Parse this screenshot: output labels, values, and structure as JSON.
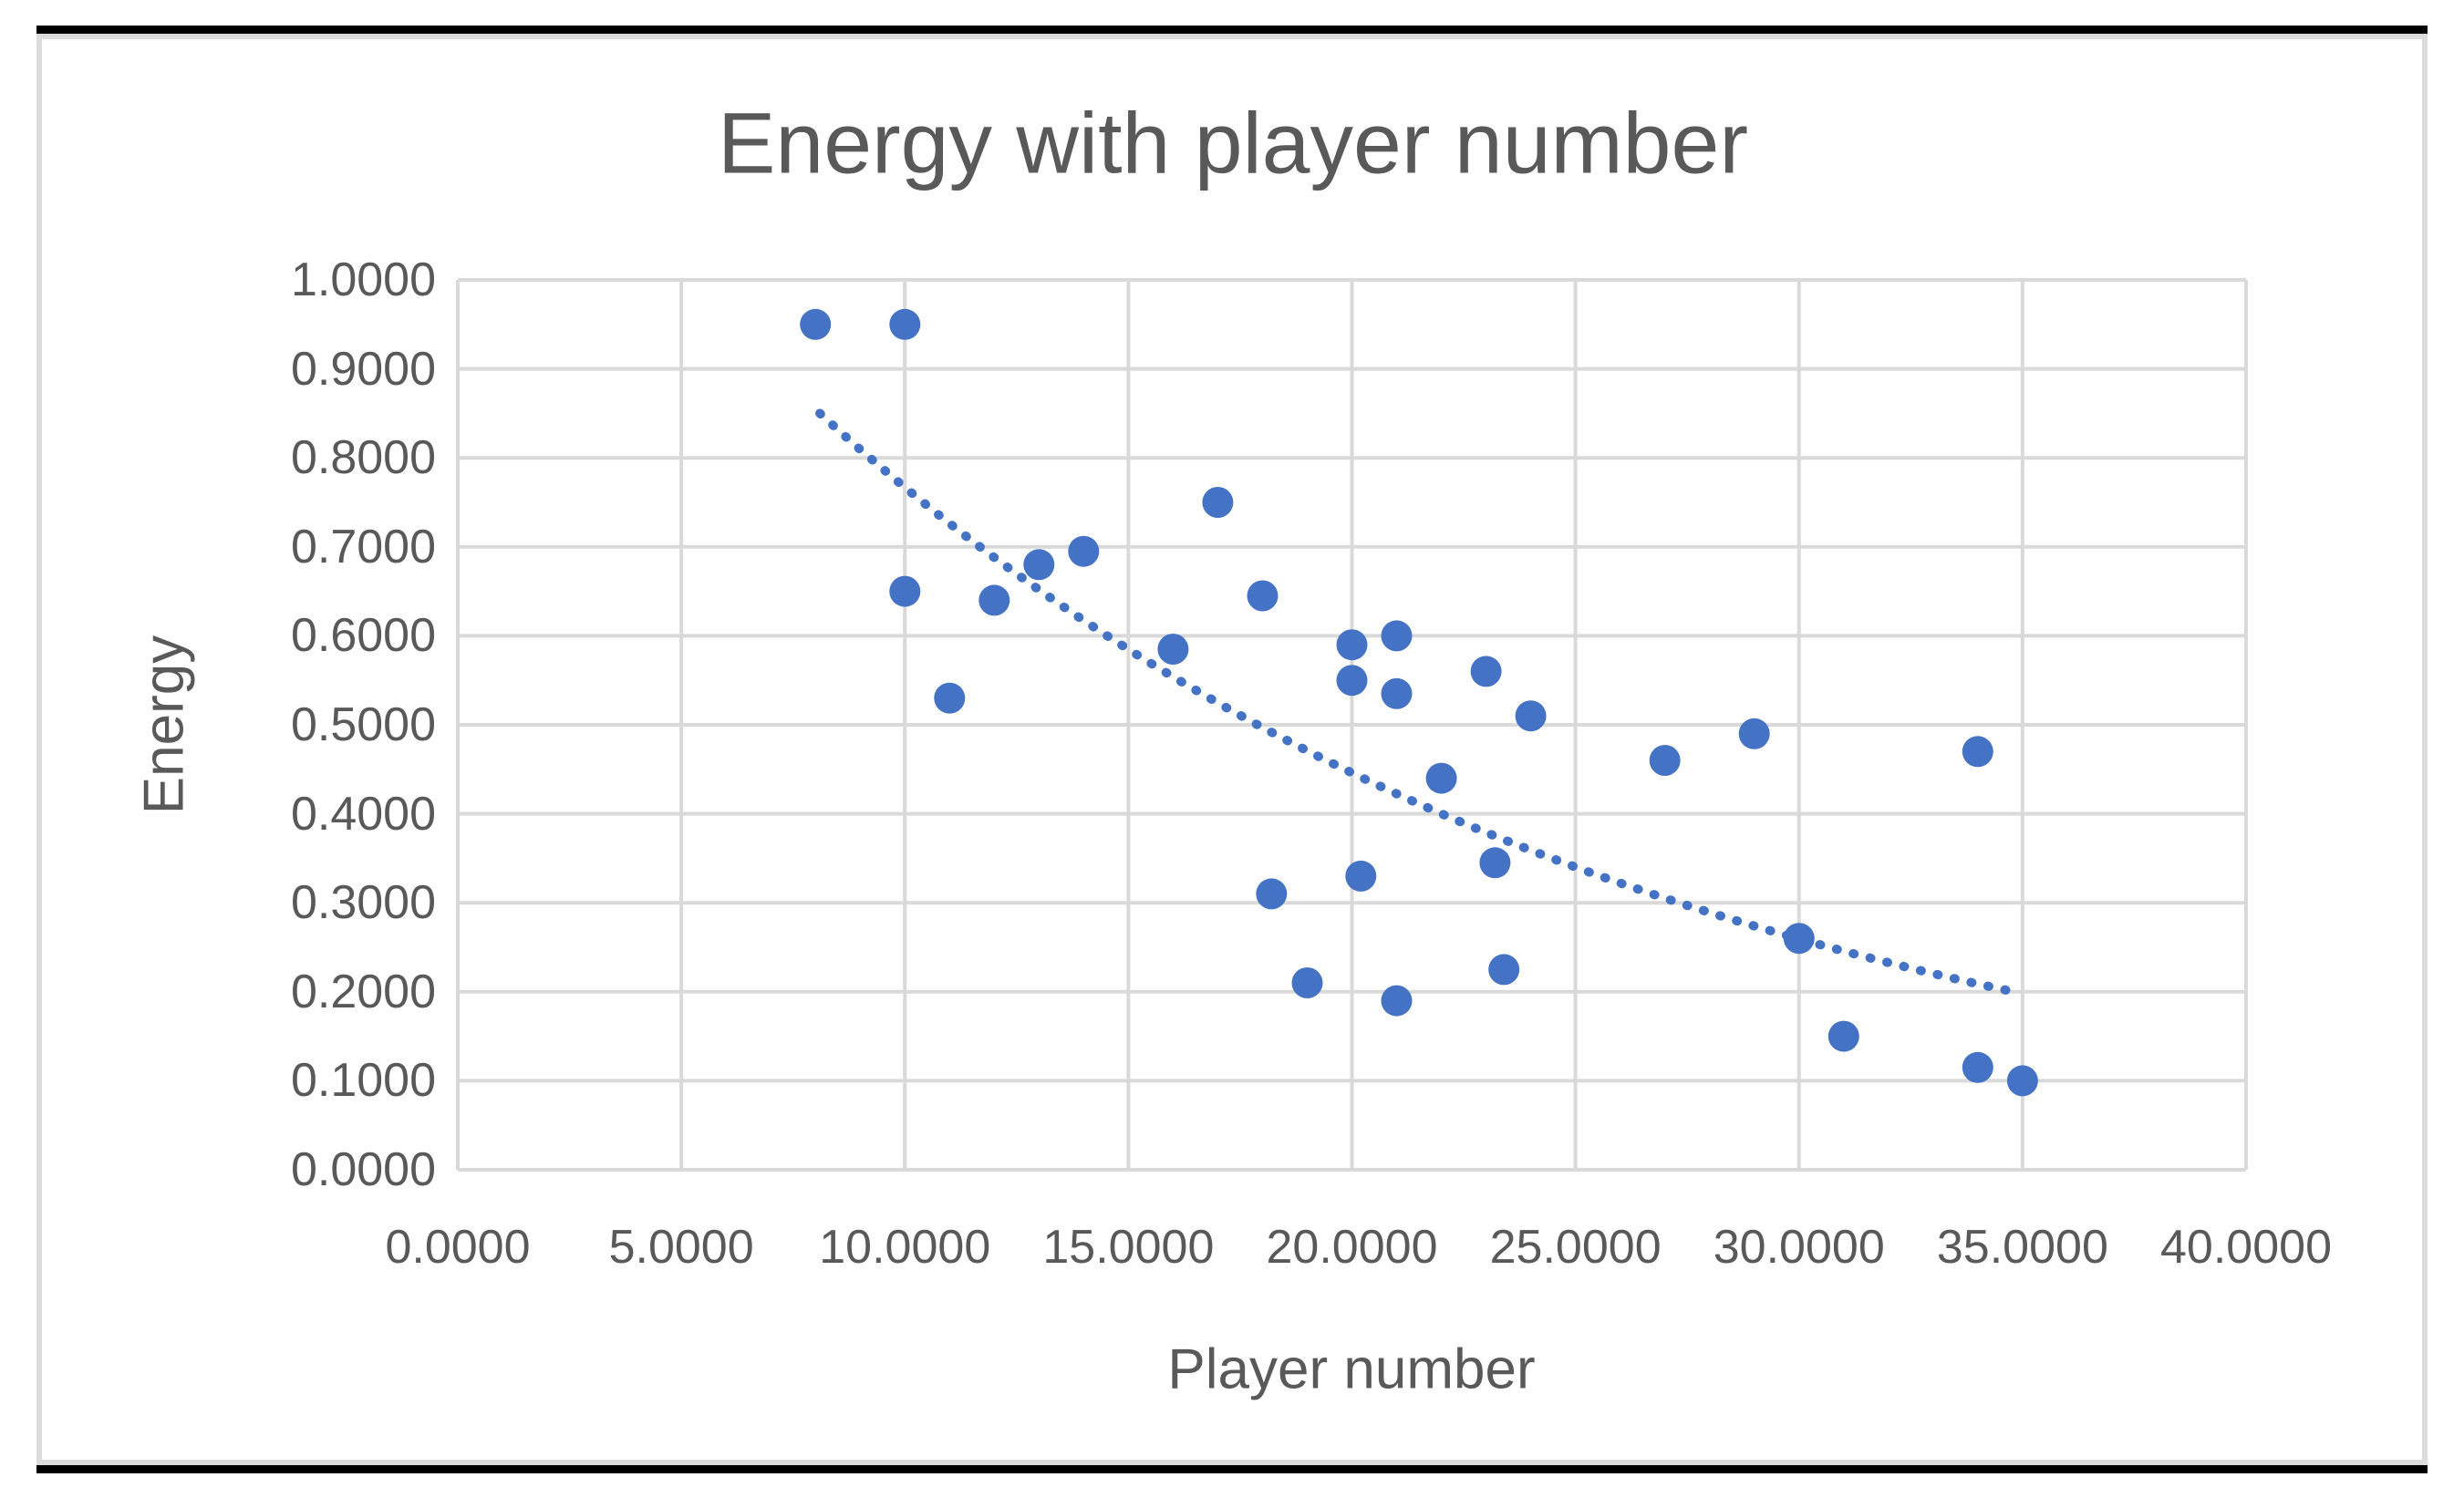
{
  "chart_data": {
    "type": "scatter",
    "title": "Energy with player number",
    "xlabel": "Player number",
    "ylabel": "Energy",
    "xlim": [
      0,
      40
    ],
    "ylim": [
      0,
      1
    ],
    "grid": true,
    "legend_position": "none",
    "x_tick_labels": [
      "0.0000",
      "5.0000",
      "10.0000",
      "15.0000",
      "20.0000",
      "25.0000",
      "30.0000",
      "35.0000",
      "40.0000"
    ],
    "y_tick_labels": [
      "0.0000",
      "0.1000",
      "0.2000",
      "0.3000",
      "0.4000",
      "0.5000",
      "0.6000",
      "0.7000",
      "0.8000",
      "0.9000",
      "1.0000"
    ],
    "points": [
      {
        "x": 8.0,
        "y": 0.95
      },
      {
        "x": 10.0,
        "y": 0.95
      },
      {
        "x": 10.0,
        "y": 0.65
      },
      {
        "x": 11.0,
        "y": 0.53
      },
      {
        "x": 12.0,
        "y": 0.64
      },
      {
        "x": 13.0,
        "y": 0.68
      },
      {
        "x": 14.0,
        "y": 0.695
      },
      {
        "x": 16.0,
        "y": 0.585
      },
      {
        "x": 17.0,
        "y": 0.75
      },
      {
        "x": 18.0,
        "y": 0.645
      },
      {
        "x": 18.2,
        "y": 0.31
      },
      {
        "x": 19.0,
        "y": 0.21
      },
      {
        "x": 20.0,
        "y": 0.59
      },
      {
        "x": 20.0,
        "y": 0.55
      },
      {
        "x": 20.2,
        "y": 0.33
      },
      {
        "x": 21.0,
        "y": 0.6
      },
      {
        "x": 21.0,
        "y": 0.535
      },
      {
        "x": 21.0,
        "y": 0.19
      },
      {
        "x": 22.0,
        "y": 0.44
      },
      {
        "x": 23.0,
        "y": 0.56
      },
      {
        "x": 23.2,
        "y": 0.345
      },
      {
        "x": 23.4,
        "y": 0.225
      },
      {
        "x": 24.0,
        "y": 0.51
      },
      {
        "x": 27.0,
        "y": 0.46
      },
      {
        "x": 29.0,
        "y": 0.49
      },
      {
        "x": 30.0,
        "y": 0.26
      },
      {
        "x": 31.0,
        "y": 0.15
      },
      {
        "x": 34.0,
        "y": 0.47
      },
      {
        "x": 34.0,
        "y": 0.115
      },
      {
        "x": 35.0,
        "y": 0.1
      }
    ],
    "trendline": {
      "type": "exponential",
      "line_style": "dotted",
      "x_start": 8.1,
      "y_start": 0.85,
      "x_end": 34.8,
      "y_end": 0.2
    },
    "colors": {
      "marker": "#4472C4",
      "trendline": "#4472C4",
      "gridlines": "#D9D9D9",
      "tick_text": "#595959",
      "title_text": "#595959",
      "chart_border": "#DCDCDC",
      "page_rule": "#000000"
    }
  }
}
